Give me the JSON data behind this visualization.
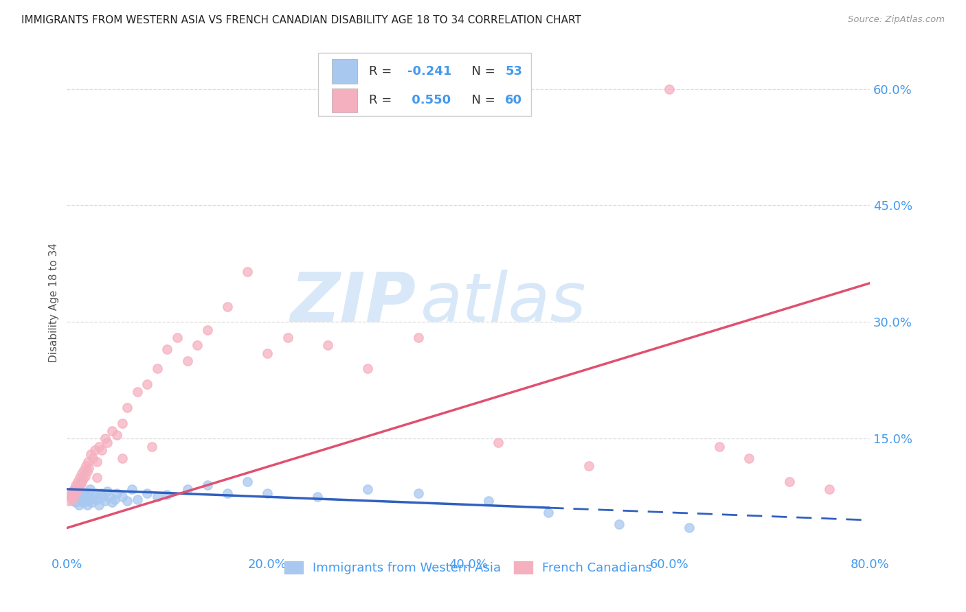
{
  "title": "IMMIGRANTS FROM WESTERN ASIA VS FRENCH CANADIAN DISABILITY AGE 18 TO 34 CORRELATION CHART",
  "source": "Source: ZipAtlas.com",
  "ylabel": "Disability Age 18 to 34",
  "blue_R": -0.241,
  "blue_N": 53,
  "pink_R": 0.55,
  "pink_N": 60,
  "blue_color": "#A8C8F0",
  "pink_color": "#F5B0C0",
  "blue_line_color": "#3060C0",
  "pink_line_color": "#E05070",
  "axis_label_color": "#4499EE",
  "title_color": "#222222",
  "watermark_zip": "ZIP",
  "watermark_atlas": "atlas",
  "watermark_color": "#D8E8F8",
  "background_color": "#FFFFFF",
  "grid_color": "#DDDDDD",
  "xlim": [
    0,
    80
  ],
  "ylim": [
    0,
    65
  ],
  "xticks": [
    0,
    10,
    20,
    30,
    40,
    50,
    60,
    70,
    80
  ],
  "xticklabels": [
    "0.0%",
    "",
    "20.0%",
    "",
    "40.0%",
    "",
    "60.0%",
    "",
    "80.0%"
  ],
  "yticks_right": [
    0,
    15,
    30,
    45,
    60
  ],
  "yticklabels_right": [
    "",
    "15.0%",
    "30.0%",
    "45.0%",
    "60.0%"
  ],
  "blue_solid_end": 48,
  "blue_line_start": 0,
  "blue_line_end": 80,
  "pink_line_start": 0,
  "pink_line_end": 80,
  "blue_line_y0": 8.5,
  "blue_line_y1": 4.5,
  "pink_line_y0": 3.5,
  "pink_line_y1": 35.0,
  "blue_scatter_x": [
    0.3,
    0.5,
    0.6,
    0.7,
    0.8,
    0.9,
    1.0,
    1.1,
    1.2,
    1.3,
    1.4,
    1.5,
    1.6,
    1.7,
    1.8,
    1.9,
    2.0,
    2.1,
    2.2,
    2.3,
    2.4,
    2.5,
    2.7,
    2.9,
    3.0,
    3.2,
    3.4,
    3.6,
    3.8,
    4.0,
    4.2,
    4.5,
    4.8,
    5.0,
    5.5,
    6.0,
    6.5,
    7.0,
    8.0,
    9.0,
    10.0,
    12.0,
    14.0,
    16.0,
    18.0,
    20.0,
    25.0,
    30.0,
    35.0,
    42.0,
    48.0,
    55.0,
    62.0
  ],
  "blue_scatter_y": [
    7.5,
    8.0,
    7.0,
    8.5,
    7.2,
    6.8,
    8.0,
    7.5,
    6.5,
    7.8,
    8.2,
    7.0,
    6.8,
    7.5,
    8.0,
    7.2,
    6.5,
    7.8,
    7.0,
    8.5,
    7.2,
    6.8,
    7.5,
    8.0,
    7.2,
    6.5,
    8.0,
    7.5,
    7.0,
    8.2,
    7.5,
    6.8,
    7.2,
    8.0,
    7.5,
    7.0,
    8.5,
    7.2,
    8.0,
    7.5,
    7.8,
    8.5,
    9.0,
    8.0,
    9.5,
    8.0,
    7.5,
    8.5,
    8.0,
    7.0,
    5.5,
    4.0,
    3.5
  ],
  "pink_scatter_x": [
    0.2,
    0.4,
    0.5,
    0.6,
    0.7,
    0.8,
    0.9,
    1.0,
    1.1,
    1.2,
    1.3,
    1.4,
    1.5,
    1.6,
    1.7,
    1.8,
    1.9,
    2.0,
    2.1,
    2.2,
    2.4,
    2.6,
    2.8,
    3.0,
    3.2,
    3.5,
    3.8,
    4.0,
    4.5,
    5.0,
    5.5,
    6.0,
    7.0,
    8.0,
    9.0,
    10.0,
    11.0,
    12.0,
    13.0,
    14.0,
    16.0,
    18.0,
    20.0,
    22.0,
    26.0,
    30.0,
    35.0,
    43.0,
    52.0,
    60.0,
    65.0,
    68.0,
    72.0,
    76.0,
    0.3,
    0.7,
    1.5,
    3.0,
    5.5,
    8.5
  ],
  "pink_scatter_y": [
    7.0,
    7.5,
    8.0,
    7.2,
    8.5,
    7.8,
    9.0,
    8.2,
    9.5,
    8.8,
    10.0,
    9.2,
    10.5,
    9.8,
    11.0,
    10.2,
    11.5,
    10.8,
    12.0,
    11.2,
    13.0,
    12.5,
    13.5,
    12.0,
    14.0,
    13.5,
    15.0,
    14.5,
    16.0,
    15.5,
    17.0,
    19.0,
    21.0,
    22.0,
    24.0,
    26.5,
    28.0,
    25.0,
    27.0,
    29.0,
    32.0,
    36.5,
    26.0,
    28.0,
    27.0,
    24.0,
    28.0,
    14.5,
    11.5,
    60.0,
    14.0,
    12.5,
    9.5,
    8.5,
    7.8,
    8.5,
    9.5,
    10.0,
    12.5,
    14.0
  ]
}
